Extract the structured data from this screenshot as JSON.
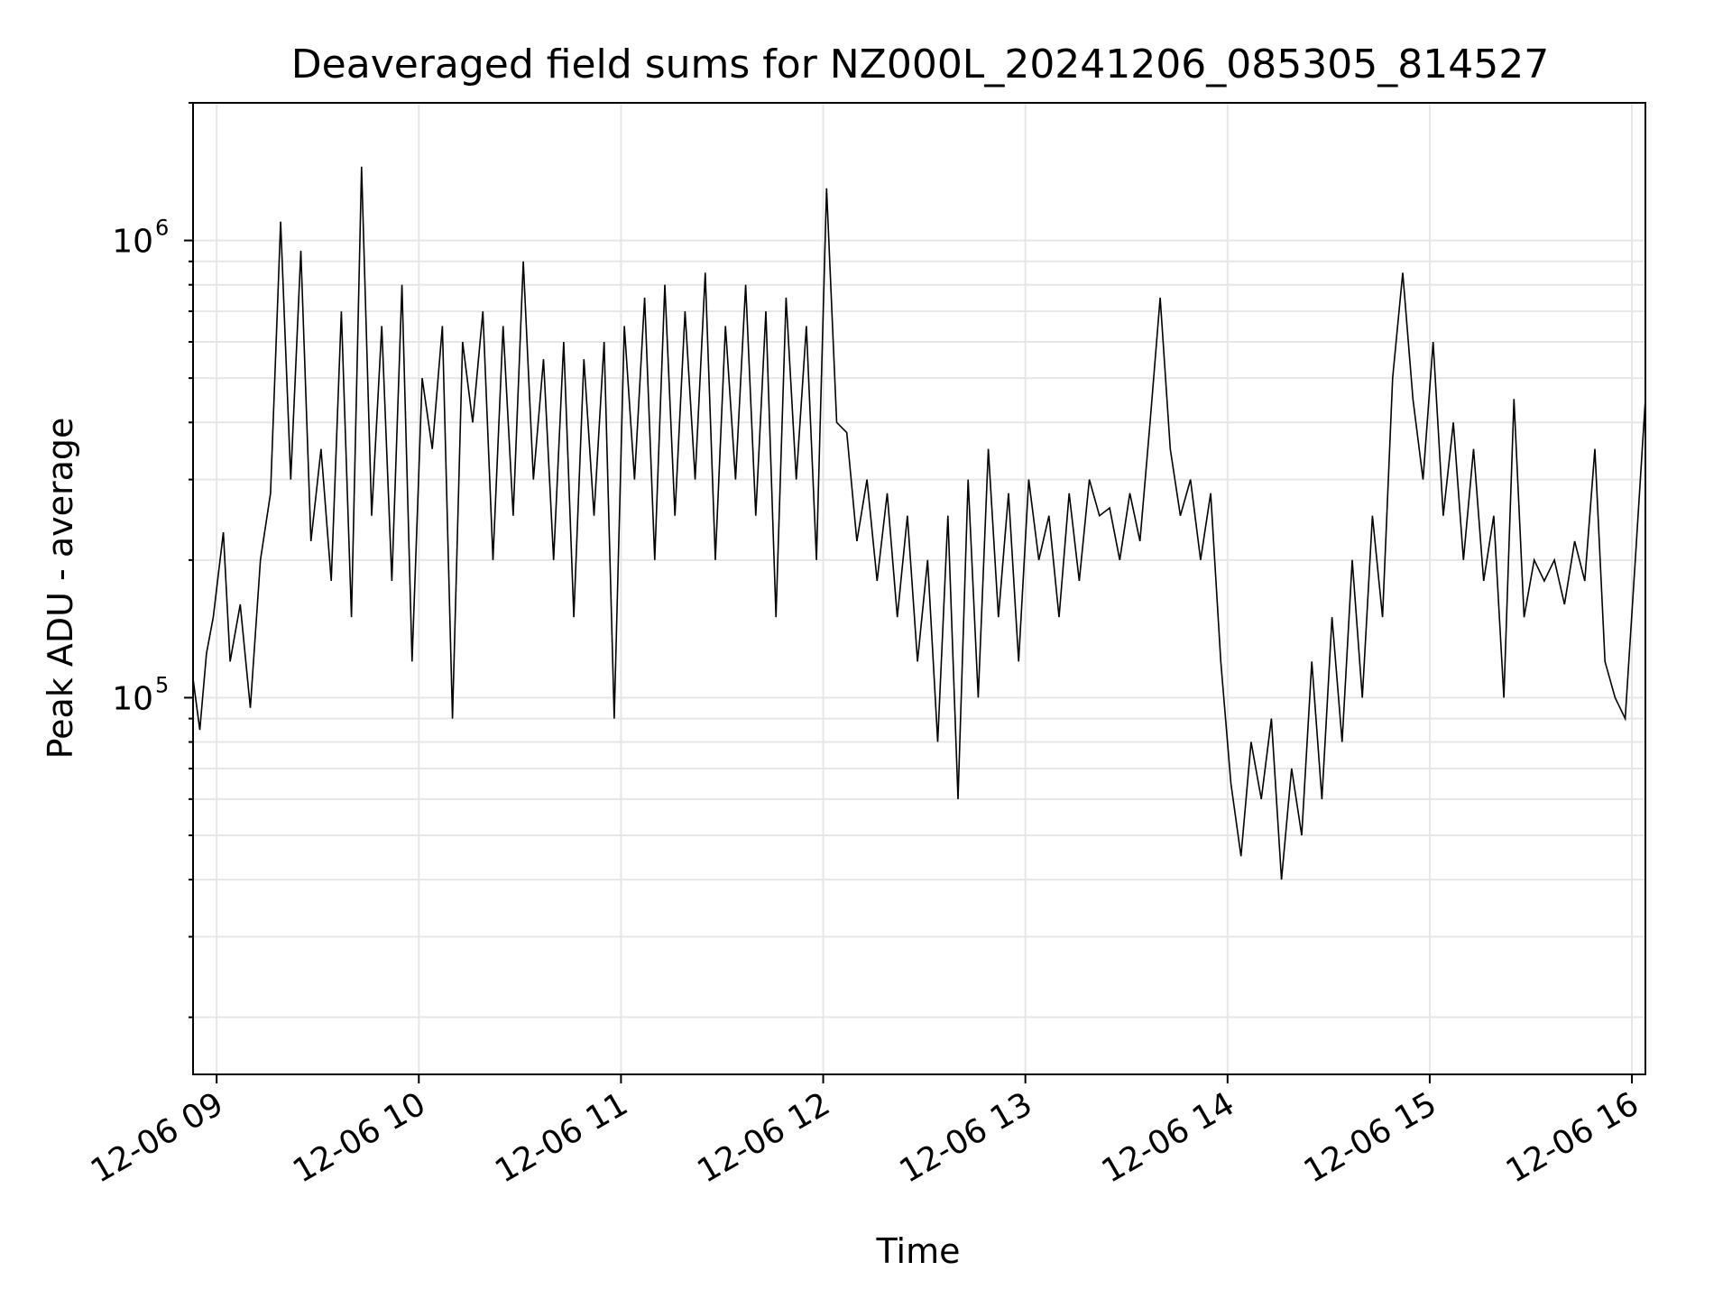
{
  "chart_data": {
    "type": "line",
    "title": "Deaveraged field sums for NZ000L_20241206_085305_814527",
    "xlabel": "Time",
    "ylabel": "Peak ADU - average",
    "yscale": "log",
    "ylim": [
      15000,
      2000000
    ],
    "xlim": [
      "2024-12-06 08:53",
      "2024-12-06 16:04"
    ],
    "grid": true,
    "line_color": "#000000",
    "grid_color": "#e6e6e6",
    "x_ticks": [
      {
        "t": "2024-12-06 09:00",
        "label": "12-06 09"
      },
      {
        "t": "2024-12-06 10:00",
        "label": "12-06 10"
      },
      {
        "t": "2024-12-06 11:00",
        "label": "12-06 11"
      },
      {
        "t": "2024-12-06 12:00",
        "label": "12-06 12"
      },
      {
        "t": "2024-12-06 13:00",
        "label": "12-06 13"
      },
      {
        "t": "2024-12-06 14:00",
        "label": "12-06 14"
      },
      {
        "t": "2024-12-06 15:00",
        "label": "12-06 15"
      },
      {
        "t": "2024-12-06 16:00",
        "label": "12-06 16"
      }
    ],
    "y_ticks": [
      {
        "value": 100000,
        "base": "10",
        "exp": "5"
      },
      {
        "value": 1000000,
        "base": "10",
        "exp": "6"
      }
    ],
    "series": [
      {
        "x": [
          "2024-12-06 08:53",
          "2024-12-06 08:55",
          "2024-12-06 08:57",
          "2024-12-06 08:59",
          "2024-12-06 09:02",
          "2024-12-06 09:04",
          "2024-12-06 09:07",
          "2024-12-06 09:10",
          "2024-12-06 09:13",
          "2024-12-06 09:16",
          "2024-12-06 09:19",
          "2024-12-06 09:22",
          "2024-12-06 09:25",
          "2024-12-06 09:28",
          "2024-12-06 09:31",
          "2024-12-06 09:34",
          "2024-12-06 09:37",
          "2024-12-06 09:40",
          "2024-12-06 09:43",
          "2024-12-06 09:46",
          "2024-12-06 09:49",
          "2024-12-06 09:52",
          "2024-12-06 09:55",
          "2024-12-06 09:58",
          "2024-12-06 10:01",
          "2024-12-06 10:04",
          "2024-12-06 10:07",
          "2024-12-06 10:10",
          "2024-12-06 10:13",
          "2024-12-06 10:16",
          "2024-12-06 10:19",
          "2024-12-06 10:22",
          "2024-12-06 10:25",
          "2024-12-06 10:28",
          "2024-12-06 10:31",
          "2024-12-06 10:34",
          "2024-12-06 10:37",
          "2024-12-06 10:40",
          "2024-12-06 10:43",
          "2024-12-06 10:46",
          "2024-12-06 10:49",
          "2024-12-06 10:52",
          "2024-12-06 10:55",
          "2024-12-06 10:58",
          "2024-12-06 11:01",
          "2024-12-06 11:04",
          "2024-12-06 11:07",
          "2024-12-06 11:10",
          "2024-12-06 11:13",
          "2024-12-06 11:16",
          "2024-12-06 11:19",
          "2024-12-06 11:22",
          "2024-12-06 11:25",
          "2024-12-06 11:28",
          "2024-12-06 11:31",
          "2024-12-06 11:34",
          "2024-12-06 11:37",
          "2024-12-06 11:40",
          "2024-12-06 11:43",
          "2024-12-06 11:46",
          "2024-12-06 11:49",
          "2024-12-06 11:52",
          "2024-12-06 11:55",
          "2024-12-06 11:58",
          "2024-12-06 12:01",
          "2024-12-06 12:04",
          "2024-12-06 12:07",
          "2024-12-06 12:10",
          "2024-12-06 12:13",
          "2024-12-06 12:16",
          "2024-12-06 12:19",
          "2024-12-06 12:22",
          "2024-12-06 12:25",
          "2024-12-06 12:28",
          "2024-12-06 12:31",
          "2024-12-06 12:34",
          "2024-12-06 12:37",
          "2024-12-06 12:40",
          "2024-12-06 12:43",
          "2024-12-06 12:46",
          "2024-12-06 12:49",
          "2024-12-06 12:52",
          "2024-12-06 12:55",
          "2024-12-06 12:58",
          "2024-12-06 13:01",
          "2024-12-06 13:04",
          "2024-12-06 13:07",
          "2024-12-06 13:10",
          "2024-12-06 13:13",
          "2024-12-06 13:16",
          "2024-12-06 13:19",
          "2024-12-06 13:22",
          "2024-12-06 13:25",
          "2024-12-06 13:28",
          "2024-12-06 13:31",
          "2024-12-06 13:34",
          "2024-12-06 13:37",
          "2024-12-06 13:40",
          "2024-12-06 13:43",
          "2024-12-06 13:46",
          "2024-12-06 13:49",
          "2024-12-06 13:52",
          "2024-12-06 13:55",
          "2024-12-06 13:58",
          "2024-12-06 14:01",
          "2024-12-06 14:04",
          "2024-12-06 14:07",
          "2024-12-06 14:10",
          "2024-12-06 14:13",
          "2024-12-06 14:16",
          "2024-12-06 14:19",
          "2024-12-06 14:22",
          "2024-12-06 14:25",
          "2024-12-06 14:28",
          "2024-12-06 14:31",
          "2024-12-06 14:34",
          "2024-12-06 14:37",
          "2024-12-06 14:40",
          "2024-12-06 14:43",
          "2024-12-06 14:46",
          "2024-12-06 14:49",
          "2024-12-06 14:52",
          "2024-12-06 14:55",
          "2024-12-06 14:58",
          "2024-12-06 15:01",
          "2024-12-06 15:04",
          "2024-12-06 15:07",
          "2024-12-06 15:10",
          "2024-12-06 15:13",
          "2024-12-06 15:16",
          "2024-12-06 15:19",
          "2024-12-06 15:22",
          "2024-12-06 15:25",
          "2024-12-06 15:28",
          "2024-12-06 15:31",
          "2024-12-06 15:34",
          "2024-12-06 15:37",
          "2024-12-06 15:40",
          "2024-12-06 15:43",
          "2024-12-06 15:46",
          "2024-12-06 15:49",
          "2024-12-06 15:52",
          "2024-12-06 15:55",
          "2024-12-06 15:58",
          "2024-12-06 16:01",
          "2024-12-06 16:04"
        ],
        "y": [
          110000,
          85000,
          125000,
          150000,
          230000,
          120000,
          160000,
          95000,
          200000,
          280000,
          1100000,
          300000,
          950000,
          220000,
          350000,
          180000,
          700000,
          150000,
          1450000,
          250000,
          650000,
          180000,
          800000,
          120000,
          500000,
          350000,
          650000,
          90000,
          600000,
          400000,
          700000,
          200000,
          650000,
          250000,
          900000,
          300000,
          550000,
          200000,
          600000,
          150000,
          550000,
          250000,
          600000,
          90000,
          650000,
          300000,
          750000,
          200000,
          800000,
          250000,
          700000,
          300000,
          850000,
          200000,
          650000,
          300000,
          800000,
          250000,
          700000,
          150000,
          750000,
          300000,
          650000,
          200000,
          1300000,
          400000,
          380000,
          220000,
          300000,
          180000,
          280000,
          150000,
          250000,
          120000,
          200000,
          80000,
          250000,
          60000,
          300000,
          100000,
          350000,
          150000,
          280000,
          120000,
          300000,
          200000,
          250000,
          150000,
          280000,
          180000,
          300000,
          250000,
          260000,
          200000,
          280000,
          220000,
          400000,
          750000,
          350000,
          250000,
          300000,
          200000,
          280000,
          120000,
          65000,
          45000,
          80000,
          60000,
          90000,
          40000,
          70000,
          50000,
          120000,
          60000,
          150000,
          80000,
          200000,
          100000,
          250000,
          150000,
          500000,
          850000,
          450000,
          300000,
          600000,
          250000,
          400000,
          200000,
          350000,
          180000,
          250000,
          100000,
          450000,
          150000,
          200000,
          180000,
          200000,
          160000,
          220000,
          180000,
          350000,
          120000,
          100000,
          90000,
          200000,
          450000
        ]
      }
    ]
  }
}
